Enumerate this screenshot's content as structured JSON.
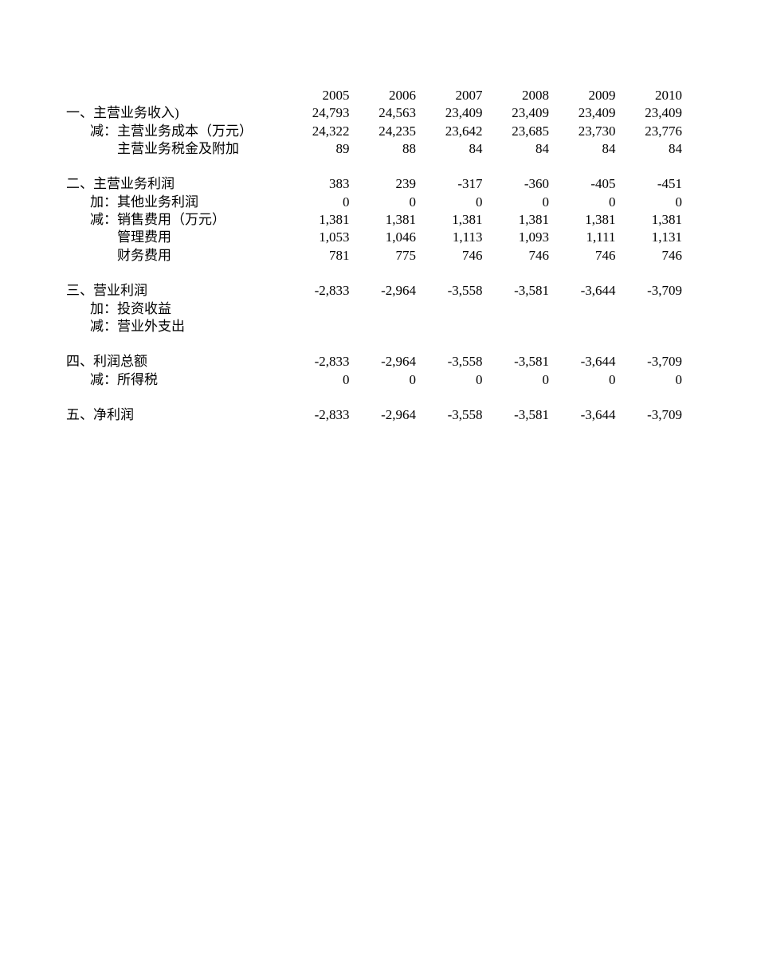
{
  "page": {
    "background": "#ffffff",
    "text_color": "#000000"
  },
  "table": {
    "years": [
      "2005",
      "2006",
      "2007",
      "2008",
      "2009",
      "2010"
    ],
    "rows": [
      {
        "label": "一、主营业务收入)",
        "indent": 0,
        "values": [
          "24,793",
          "24,563",
          "23,409",
          "23,409",
          "23,409",
          "23,409"
        ]
      },
      {
        "label": "减：主营业务成本（万元）",
        "indent": 1,
        "values": [
          "24,322",
          "24,235",
          "23,642",
          "23,685",
          "23,730",
          "23,776"
        ]
      },
      {
        "label": "主营业务税金及附加",
        "indent": 2,
        "values": [
          "89",
          "88",
          "84",
          "84",
          "84",
          "84"
        ]
      },
      {
        "type": "spacer"
      },
      {
        "label": "二、主营业务利润",
        "indent": 0,
        "values": [
          "383",
          "239",
          "-317",
          "-360",
          "-405",
          "-451"
        ]
      },
      {
        "label": "加：其他业务利润",
        "indent": 1,
        "values": [
          "0",
          "0",
          "0",
          "0",
          "0",
          "0"
        ]
      },
      {
        "label": "减：销售费用（万元）",
        "indent": 1,
        "values": [
          "1,381",
          "1,381",
          "1,381",
          "1,381",
          "1,381",
          "1,381"
        ]
      },
      {
        "label": "管理费用",
        "indent": 2,
        "values": [
          "1,053",
          "1,046",
          "1,113",
          "1,093",
          "1,111",
          "1,131"
        ]
      },
      {
        "label": "财务费用",
        "indent": 2,
        "values": [
          "781",
          "775",
          "746",
          "746",
          "746",
          "746"
        ]
      },
      {
        "type": "spacer"
      },
      {
        "label": "三、营业利润",
        "indent": 0,
        "values": [
          "-2,833",
          "-2,964",
          "-3,558",
          "-3,581",
          "-3,644",
          "-3,709"
        ]
      },
      {
        "label": "加：投资收益",
        "indent": 1,
        "values": [
          "",
          "",
          "",
          "",
          "",
          ""
        ]
      },
      {
        "label": "减：营业外支出",
        "indent": 1,
        "values": [
          "",
          "",
          "",
          "",
          "",
          ""
        ]
      },
      {
        "type": "spacer"
      },
      {
        "label": "四、利润总额",
        "indent": 0,
        "values": [
          "-2,833",
          "-2,964",
          "-3,558",
          "-3,581",
          "-3,644",
          "-3,709"
        ]
      },
      {
        "label": "减：所得税",
        "indent": 1,
        "values": [
          "0",
          "0",
          "0",
          "0",
          "0",
          "0"
        ]
      },
      {
        "type": "spacer"
      },
      {
        "label": "五、净利润",
        "indent": 0,
        "values": [
          "-2,833",
          "-2,964",
          "-3,558",
          "-3,581",
          "-3,644",
          "-3,709"
        ]
      }
    ]
  }
}
